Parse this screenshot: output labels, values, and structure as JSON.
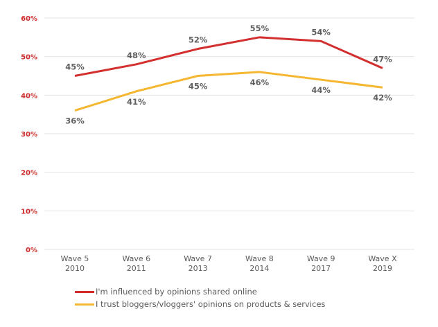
{
  "chart_data": {
    "type": "line",
    "title": "",
    "xlabel": "",
    "ylabel": "",
    "ylim": [
      0,
      60
    ],
    "yticks": [
      "0%",
      "10%",
      "20%",
      "30%",
      "40%",
      "50%",
      "60%"
    ],
    "ytick_values": [
      0,
      10,
      20,
      30,
      40,
      50,
      60
    ],
    "grid": true,
    "categories": [
      {
        "line1": "Wave 5",
        "line2": "2010"
      },
      {
        "line1": "Wave 6",
        "line2": "2011"
      },
      {
        "line1": "Wave 7",
        "line2": "2013"
      },
      {
        "line1": "Wave 8",
        "line2": "2014"
      },
      {
        "line1": "Wave 9",
        "line2": "2017"
      },
      {
        "line1": "Wave X",
        "line2": "2019"
      }
    ],
    "series": [
      {
        "name": "I'm influenced by opinions shared online",
        "color": "#d32f2f",
        "values": [
          45,
          48,
          52,
          55,
          54,
          47
        ],
        "labels": [
          "45%",
          "48%",
          "52%",
          "55%",
          "54%",
          "47%"
        ],
        "label_position": "above"
      },
      {
        "name": "I trust bloggers/vloggers' opinions on products & services",
        "color": "#f5b731",
        "values": [
          36,
          41,
          45,
          46,
          44,
          42
        ],
        "labels": [
          "36%",
          "41%",
          "45%",
          "46%",
          "44%",
          "42%"
        ],
        "label_position": "below"
      }
    ],
    "legend_position": "bottom"
  },
  "colors": {
    "axis_tick": "#cc2a2a",
    "gridline": "#e3e3e3",
    "data_label": "#606060"
  }
}
